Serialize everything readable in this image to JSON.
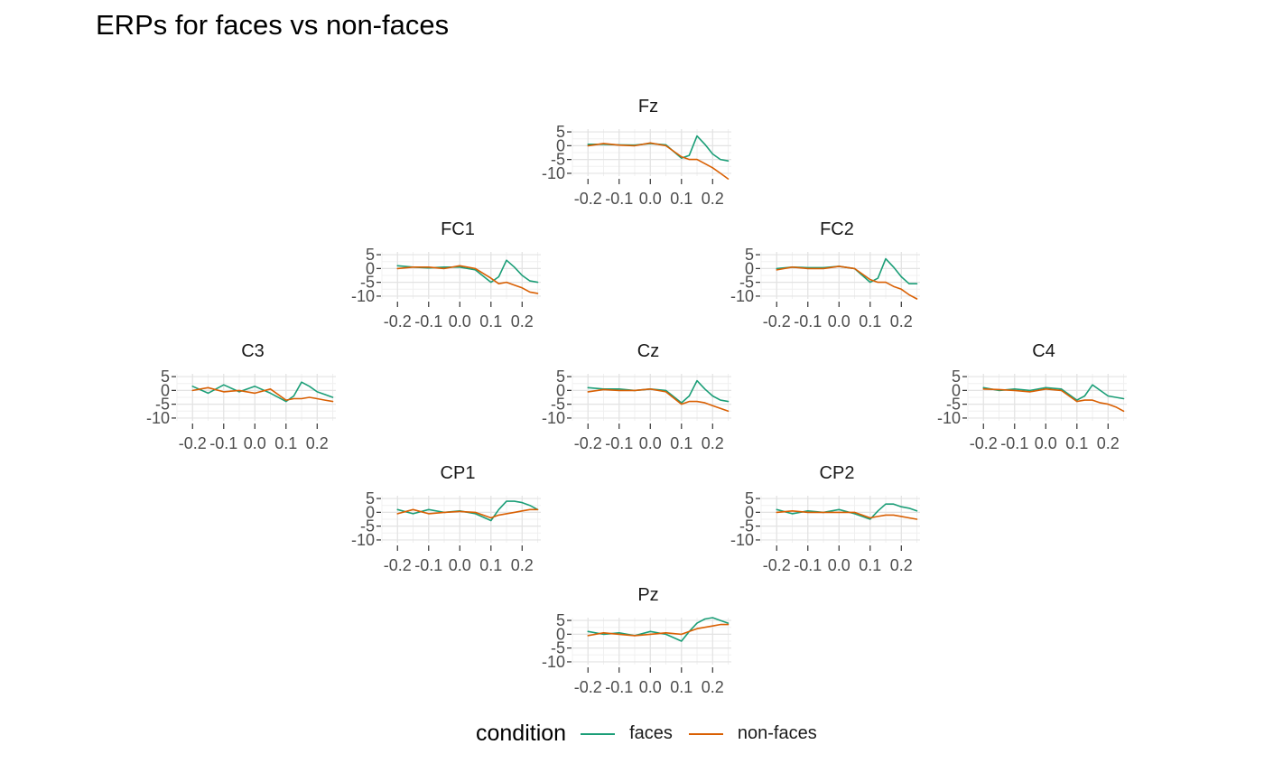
{
  "chart_data": {
    "type": "line",
    "title": "ERPs for faces vs non-faces",
    "xlim": [
      -0.25,
      0.26
    ],
    "ylim": [
      -11,
      6
    ],
    "x_ticks": [
      -0.2,
      -0.1,
      0.0,
      0.1,
      0.2
    ],
    "x_tick_labels": [
      "-0.2",
      "-0.1",
      "0.0",
      "0.1",
      "0.2"
    ],
    "y_ticks": [
      5,
      0,
      -5,
      -10
    ],
    "y_tick_labels": [
      "5",
      "0",
      "-5",
      "-10"
    ],
    "grid": true,
    "legend_position": "bottom",
    "legend_title": "condition",
    "colors": {
      "faces": "#1b9e77",
      "non-faces": "#d95f02"
    },
    "x": [
      -0.2,
      -0.15,
      -0.1,
      -0.05,
      0.0,
      0.05,
      0.1,
      0.125,
      0.15,
      0.175,
      0.2,
      0.225,
      0.25
    ],
    "panels": [
      {
        "name": "Fz",
        "series": [
          {
            "name": "faces",
            "values": [
              0.5,
              0.5,
              0.3,
              0.2,
              0.8,
              0.3,
              -4.5,
              -3.5,
              3.5,
              0.5,
              -3.0,
              -5.0,
              -5.5
            ]
          },
          {
            "name": "non-faces",
            "values": [
              0.0,
              0.8,
              0.2,
              0.0,
              1.0,
              0.0,
              -4.0,
              -5.0,
              -5.0,
              -6.5,
              -8.0,
              -10.0,
              -12.0
            ]
          }
        ]
      },
      {
        "name": "FC1",
        "series": [
          {
            "name": "faces",
            "values": [
              1.0,
              0.5,
              0.2,
              0.5,
              0.5,
              -0.5,
              -5.0,
              -3.0,
              3.0,
              0.5,
              -2.5,
              -4.5,
              -5.0
            ]
          },
          {
            "name": "non-faces",
            "values": [
              0.0,
              0.5,
              0.5,
              0.0,
              1.0,
              0.0,
              -3.5,
              -5.5,
              -5.0,
              -6.0,
              -7.0,
              -8.5,
              -9.0
            ]
          }
        ]
      },
      {
        "name": "FC2",
        "series": [
          {
            "name": "faces",
            "values": [
              0.0,
              0.5,
              0.3,
              0.3,
              0.8,
              0.0,
              -5.0,
              -3.5,
              3.5,
              0.5,
              -3.0,
              -5.5,
              -5.5
            ]
          },
          {
            "name": "non-faces",
            "values": [
              -0.5,
              0.5,
              0.0,
              0.0,
              0.8,
              0.0,
              -4.0,
              -5.0,
              -5.0,
              -6.5,
              -7.5,
              -9.5,
              -11.0
            ]
          }
        ]
      },
      {
        "name": "C3",
        "series": [
          {
            "name": "faces",
            "values": [
              1.5,
              -1.0,
              2.0,
              -0.5,
              1.5,
              -1.0,
              -4.0,
              -2.0,
              3.0,
              1.5,
              -0.5,
              -1.5,
              -2.5
            ]
          },
          {
            "name": "non-faces",
            "values": [
              0.0,
              1.0,
              -0.5,
              0.0,
              -1.0,
              0.5,
              -3.5,
              -3.0,
              -3.0,
              -2.5,
              -3.0,
              -3.5,
              -4.0
            ]
          }
        ]
      },
      {
        "name": "Cz",
        "series": [
          {
            "name": "faces",
            "values": [
              1.0,
              0.5,
              0.5,
              0.0,
              0.5,
              0.0,
              -4.5,
              -2.0,
              3.5,
              0.5,
              -2.0,
              -3.5,
              -4.0
            ]
          },
          {
            "name": "non-faces",
            "values": [
              -0.5,
              0.3,
              0.0,
              0.0,
              0.5,
              -0.5,
              -5.0,
              -4.0,
              -4.0,
              -4.5,
              -5.5,
              -6.5,
              -7.5
            ]
          }
        ]
      },
      {
        "name": "C4",
        "series": [
          {
            "name": "faces",
            "values": [
              1.0,
              0.0,
              0.5,
              0.0,
              1.0,
              0.5,
              -3.5,
              -2.0,
              2.0,
              0.0,
              -2.0,
              -2.5,
              -3.0
            ]
          },
          {
            "name": "non-faces",
            "values": [
              0.5,
              0.3,
              0.0,
              -0.5,
              0.5,
              0.0,
              -4.0,
              -3.5,
              -3.5,
              -4.5,
              -5.0,
              -6.0,
              -7.5
            ]
          }
        ]
      },
      {
        "name": "CP1",
        "series": [
          {
            "name": "faces",
            "values": [
              1.0,
              -0.5,
              1.0,
              0.0,
              0.5,
              -0.5,
              -3.0,
              1.0,
              4.0,
              4.0,
              3.5,
              2.5,
              1.0
            ]
          },
          {
            "name": "non-faces",
            "values": [
              -0.5,
              1.0,
              -0.5,
              0.0,
              0.3,
              0.0,
              -2.0,
              -1.0,
              -0.5,
              0.0,
              0.5,
              1.0,
              1.0
            ]
          }
        ]
      },
      {
        "name": "CP2",
        "series": [
          {
            "name": "faces",
            "values": [
              1.0,
              -0.5,
              0.5,
              0.0,
              1.0,
              -0.5,
              -2.5,
              0.5,
              3.0,
              3.0,
              2.0,
              1.5,
              0.5
            ]
          },
          {
            "name": "non-faces",
            "values": [
              0.0,
              0.5,
              0.0,
              0.0,
              0.0,
              0.0,
              -2.0,
              -1.5,
              -1.0,
              -1.0,
              -1.5,
              -2.0,
              -2.5
            ]
          }
        ]
      },
      {
        "name": "Pz",
        "series": [
          {
            "name": "faces",
            "values": [
              1.0,
              0.0,
              0.5,
              -0.5,
              1.0,
              0.0,
              -2.5,
              1.0,
              4.0,
              5.5,
              6.0,
              5.0,
              4.0
            ]
          },
          {
            "name": "non-faces",
            "values": [
              -0.5,
              0.5,
              0.0,
              -0.5,
              0.0,
              0.5,
              0.0,
              1.0,
              2.0,
              2.5,
              3.0,
              3.5,
              3.5
            ]
          }
        ]
      }
    ]
  }
}
